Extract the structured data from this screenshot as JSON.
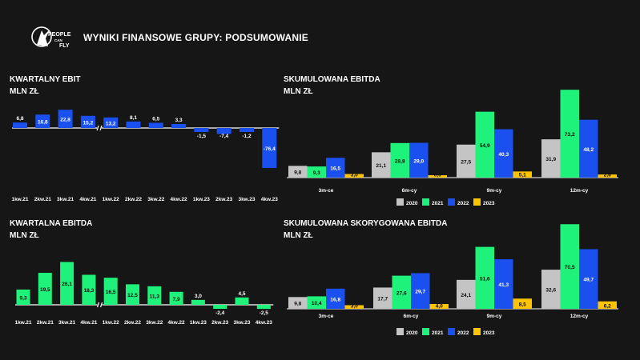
{
  "header": {
    "title": "WYNIKI FINANSOWE GRUPY: PODSUMOWANIE",
    "logo_text": [
      "PEOPLE",
      "CAN",
      "FLY"
    ]
  },
  "colors": {
    "background": "#161616",
    "blue": "#1a4ff0",
    "green": "#1ff27a",
    "gray": "#c4c4c4",
    "yellow": "#ffc400"
  },
  "chart_data": [
    {
      "type": "bar",
      "title": "KWARTALNY EBIT",
      "subtitle": "MLN ZŁ",
      "color": "blue",
      "categories": [
        "1kw.21",
        "2kw.21",
        "3kw.21",
        "4kw.21",
        "1kw.22",
        "2kw.22",
        "3kw.22",
        "4kw.22",
        "1kw.23",
        "2kw.23",
        "3kw.23",
        "4kw.23"
      ],
      "values": [
        6.8,
        16.8,
        22.8,
        15.2,
        13.2,
        8.1,
        6.5,
        3.3,
        -1.5,
        -7.4,
        -1.2,
        -76.4
      ],
      "labels": [
        "6,8",
        "16,8",
        "22,8",
        "15,2",
        "13,2",
        "8,1",
        "6,5",
        "3,3",
        "-1,5",
        "-7,4",
        "-1,2",
        "-76,4"
      ],
      "axis_break": true
    },
    {
      "type": "bar",
      "title": "KWARTALNA EBITDA",
      "subtitle": "MLN ZŁ",
      "color": "green",
      "categories": [
        "1kw.21",
        "2kw.21",
        "3kw.21",
        "4kw.21",
        "1kw.22",
        "2kw.22",
        "3kw.22",
        "4kw.22",
        "1kw.23",
        "2kw.23",
        "3kw.23",
        "4kw.23"
      ],
      "values": [
        9.3,
        19.5,
        26.1,
        18.3,
        16.5,
        12.5,
        11.3,
        7.9,
        3.0,
        -2.4,
        4.5,
        -2.5
      ],
      "labels": [
        "9,3",
        "19,5",
        "26,1",
        "18,3",
        "16,5",
        "12,5",
        "11,3",
        "7,9",
        "3,0",
        "-2,4",
        "4,5",
        "-2,5"
      ],
      "axis_break": true
    },
    {
      "type": "bar",
      "title": "SKUMULOWANA EBITDA",
      "subtitle": "MLN ZŁ",
      "categories": [
        "3m-ce",
        "6m-cy",
        "9m-cy",
        "12m-cy"
      ],
      "series": [
        {
          "name": "2020",
          "color": "gray",
          "values": [
            9.8,
            21.1,
            27.5,
            31.9
          ],
          "labels": [
            "9,8",
            "21,1",
            "27,5",
            "31,9"
          ]
        },
        {
          "name": "2021",
          "color": "green",
          "values": [
            9.3,
            28.8,
            54.9,
            73.2
          ],
          "labels": [
            "9,3",
            "28,8",
            "54,9",
            "73,2"
          ]
        },
        {
          "name": "2022",
          "color": "blue",
          "values": [
            16.5,
            29.0,
            40.3,
            48.2
          ],
          "labels": [
            "16,5",
            "29,0",
            "40,3",
            "48,2"
          ]
        },
        {
          "name": "2023",
          "color": "yellow",
          "values": [
            3.0,
            0.6,
            5.1,
            2.6
          ],
          "labels": [
            "3,0",
            "0,6",
            "5,1",
            "2,6"
          ]
        }
      ],
      "legend": "bottom"
    },
    {
      "type": "bar",
      "title": "SKUMULOWANA SKORYGOWANA EBITDA",
      "subtitle": "MLN ZŁ",
      "categories": [
        "3m-ce",
        "6m-cy",
        "9m-cy",
        "12m-cy"
      ],
      "series": [
        {
          "name": "2020",
          "color": "gray",
          "values": [
            9.8,
            17.7,
            24.1,
            32.6
          ],
          "labels": [
            "9,8",
            "17,7",
            "24,1",
            "32,6"
          ]
        },
        {
          "name": "2021",
          "color": "green",
          "values": [
            10.4,
            27.6,
            51.6,
            70.5
          ],
          "labels": [
            "10,4",
            "27,6",
            "51,6",
            "70,5"
          ]
        },
        {
          "name": "2022",
          "color": "blue",
          "values": [
            16.8,
            29.7,
            41.3,
            49.7
          ],
          "labels": [
            "16,8",
            "29,7",
            "41,3",
            "49,7"
          ]
        },
        {
          "name": "2023",
          "color": "yellow",
          "values": [
            3.0,
            4.0,
            8.5,
            6.2
          ],
          "labels": [
            "3,0",
            "4,0",
            "8,5",
            "6,2"
          ]
        }
      ],
      "legend": "bottom"
    }
  ]
}
